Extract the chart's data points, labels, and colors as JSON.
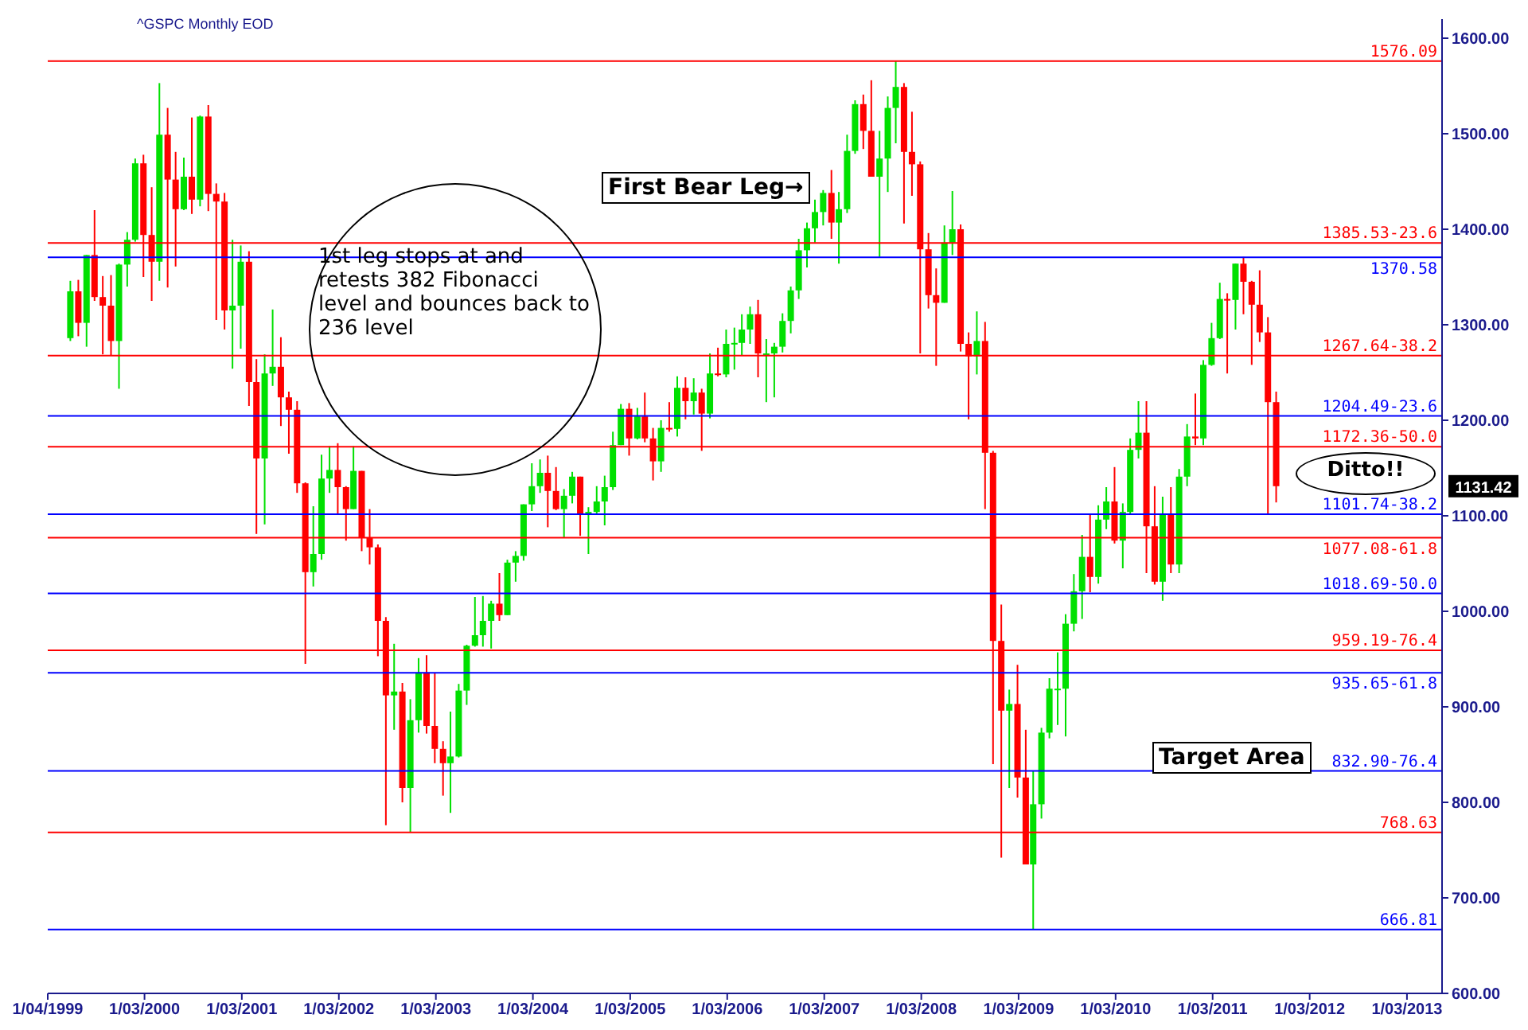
{
  "chart_data": {
    "type": "candlestick",
    "title": "^GSPC Monthly EOD",
    "x": [
      "1999-04",
      "1999-05",
      "1999-06",
      "1999-07",
      "1999-08",
      "1999-09",
      "1999-10",
      "1999-11",
      "1999-12",
      "2000-01",
      "2000-02",
      "2000-03",
      "2000-04",
      "2000-05",
      "2000-06",
      "2000-07",
      "2000-08",
      "2000-09",
      "2000-10",
      "2000-11",
      "2000-12",
      "2001-01",
      "2001-02",
      "2001-03",
      "2001-04",
      "2001-05",
      "2001-06",
      "2001-07",
      "2001-08",
      "2001-09",
      "2001-10",
      "2001-11",
      "2001-12",
      "2002-01",
      "2002-02",
      "2002-03",
      "2002-04",
      "2002-05",
      "2002-06",
      "2002-07",
      "2002-08",
      "2002-09",
      "2002-10",
      "2002-11",
      "2002-12",
      "2003-01",
      "2003-02",
      "2003-03",
      "2003-04",
      "2003-05",
      "2003-06",
      "2003-07",
      "2003-08",
      "2003-09",
      "2003-10",
      "2003-11",
      "2003-12",
      "2004-01",
      "2004-02",
      "2004-03",
      "2004-04",
      "2004-05",
      "2004-06",
      "2004-07",
      "2004-08",
      "2004-09",
      "2004-10",
      "2004-11",
      "2004-12",
      "2005-01",
      "2005-02",
      "2005-03",
      "2005-04",
      "2005-05",
      "2005-06",
      "2005-07",
      "2005-08",
      "2005-09",
      "2005-10",
      "2005-11",
      "2005-12",
      "2006-01",
      "2006-02",
      "2006-03",
      "2006-04",
      "2006-05",
      "2006-06",
      "2006-07",
      "2006-08",
      "2006-09",
      "2006-10",
      "2006-11",
      "2006-12",
      "2007-01",
      "2007-02",
      "2007-03",
      "2007-04",
      "2007-05",
      "2007-06",
      "2007-07",
      "2007-08",
      "2007-09",
      "2007-10",
      "2007-11",
      "2007-12",
      "2008-01",
      "2008-02",
      "2008-03",
      "2008-04",
      "2008-05",
      "2008-06",
      "2008-07",
      "2008-08",
      "2008-09",
      "2008-10",
      "2008-11",
      "2008-12",
      "2009-01",
      "2009-02",
      "2009-03",
      "2009-04",
      "2009-05",
      "2009-06",
      "2009-07",
      "2009-08",
      "2009-09",
      "2009-10",
      "2009-11",
      "2009-12",
      "2010-01",
      "2010-02",
      "2010-03",
      "2010-04",
      "2010-05",
      "2010-06",
      "2010-07",
      "2010-08",
      "2010-09",
      "2010-10",
      "2010-11",
      "2010-12",
      "2011-01",
      "2011-02",
      "2011-03",
      "2011-04",
      "2011-05",
      "2011-06",
      "2011-07",
      "2011-08",
      "2011-09"
    ],
    "ohlc": [
      [
        1286,
        1346,
        1283,
        1335
      ],
      [
        1335,
        1347,
        1288,
        1302
      ],
      [
        1302,
        1373,
        1277,
        1373
      ],
      [
        1373,
        1420,
        1325,
        1329
      ],
      [
        1329,
        1351,
        1269,
        1320
      ],
      [
        1320,
        1352,
        1268,
        1283
      ],
      [
        1283,
        1364,
        1233,
        1363
      ],
      [
        1363,
        1397,
        1340,
        1389
      ],
      [
        1389,
        1474,
        1387,
        1469
      ],
      [
        1469,
        1478,
        1350,
        1394
      ],
      [
        1394,
        1444,
        1325,
        1366
      ],
      [
        1366,
        1553,
        1346,
        1499
      ],
      [
        1499,
        1527,
        1339,
        1452
      ],
      [
        1452,
        1481,
        1361,
        1421
      ],
      [
        1421,
        1475,
        1420,
        1455
      ],
      [
        1455,
        1517,
        1416,
        1431
      ],
      [
        1431,
        1519,
        1424,
        1518
      ],
      [
        1518,
        1530,
        1419,
        1437
      ],
      [
        1437,
        1448,
        1305,
        1429
      ],
      [
        1429,
        1438,
        1295,
        1315
      ],
      [
        1315,
        1389,
        1254,
        1320
      ],
      [
        1320,
        1383,
        1275,
        1366
      ],
      [
        1366,
        1377,
        1215,
        1240
      ],
      [
        1240,
        1264,
        1081,
        1160
      ],
      [
        1160,
        1269,
        1091,
        1249
      ],
      [
        1249,
        1316,
        1236,
        1256
      ],
      [
        1256,
        1287,
        1194,
        1224
      ],
      [
        1224,
        1230,
        1165,
        1211
      ],
      [
        1211,
        1220,
        1124,
        1134
      ],
      [
        1134,
        1135,
        945,
        1041
      ],
      [
        1041,
        1110,
        1026,
        1060
      ],
      [
        1060,
        1164,
        1054,
        1139
      ],
      [
        1139,
        1173,
        1124,
        1148
      ],
      [
        1148,
        1176,
        1101,
        1130
      ],
      [
        1130,
        1131,
        1074,
        1107
      ],
      [
        1107,
        1173,
        1107,
        1147
      ],
      [
        1147,
        1147,
        1063,
        1077
      ],
      [
        1077,
        1107,
        1049,
        1067
      ],
      [
        1067,
        1070,
        953,
        990
      ],
      [
        990,
        994,
        776,
        912
      ],
      [
        912,
        966,
        876,
        916
      ],
      [
        916,
        925,
        800,
        815
      ],
      [
        815,
        908,
        769,
        886
      ],
      [
        886,
        951,
        873,
        936
      ],
      [
        936,
        954,
        872,
        880
      ],
      [
        880,
        935,
        841,
        856
      ],
      [
        856,
        864,
        807,
        841
      ],
      [
        841,
        895,
        789,
        848
      ],
      [
        848,
        924,
        847,
        917
      ],
      [
        917,
        965,
        902,
        964
      ],
      [
        964,
        1015,
        963,
        975
      ],
      [
        975,
        1016,
        963,
        990
      ],
      [
        990,
        1011,
        961,
        1008
      ],
      [
        1008,
        1040,
        990,
        996
      ],
      [
        996,
        1054,
        996,
        1051
      ],
      [
        1051,
        1063,
        1031,
        1058
      ],
      [
        1058,
        1112,
        1053,
        1112
      ],
      [
        1112,
        1155,
        1105,
        1131
      ],
      [
        1131,
        1159,
        1124,
        1145
      ],
      [
        1145,
        1163,
        1088,
        1126
      ],
      [
        1126,
        1151,
        1106,
        1107
      ],
      [
        1107,
        1128,
        1077,
        1121
      ],
      [
        1121,
        1146,
        1113,
        1141
      ],
      [
        1141,
        1141,
        1079,
        1102
      ],
      [
        1102,
        1109,
        1060,
        1104
      ],
      [
        1104,
        1131,
        1102,
        1115
      ],
      [
        1115,
        1142,
        1090,
        1130
      ],
      [
        1130,
        1188,
        1127,
        1174
      ],
      [
        1174,
        1217,
        1174,
        1212
      ],
      [
        1212,
        1218,
        1163,
        1181
      ],
      [
        1181,
        1213,
        1180,
        1204
      ],
      [
        1204,
        1229,
        1177,
        1181
      ],
      [
        1181,
        1192,
        1137,
        1157
      ],
      [
        1157,
        1200,
        1146,
        1192
      ],
      [
        1192,
        1219,
        1188,
        1191
      ],
      [
        1191,
        1246,
        1183,
        1234
      ],
      [
        1234,
        1245,
        1201,
        1220
      ],
      [
        1220,
        1244,
        1206,
        1229
      ],
      [
        1229,
        1233,
        1168,
        1207
      ],
      [
        1207,
        1270,
        1202,
        1249
      ],
      [
        1249,
        1276,
        1246,
        1248
      ],
      [
        1248,
        1295,
        1245,
        1280
      ],
      [
        1280,
        1297,
        1253,
        1281
      ],
      [
        1281,
        1311,
        1268,
        1295
      ],
      [
        1295,
        1319,
        1280,
        1311
      ],
      [
        1311,
        1326,
        1245,
        1270
      ],
      [
        1270,
        1285,
        1219,
        1270
      ],
      [
        1270,
        1281,
        1224,
        1277
      ],
      [
        1277,
        1312,
        1271,
        1304
      ],
      [
        1304,
        1340,
        1291,
        1336
      ],
      [
        1336,
        1390,
        1327,
        1378
      ],
      [
        1378,
        1407,
        1360,
        1401
      ],
      [
        1401,
        1431,
        1386,
        1418
      ],
      [
        1418,
        1441,
        1404,
        1438
      ],
      [
        1438,
        1462,
        1390,
        1407
      ],
      [
        1407,
        1439,
        1364,
        1421
      ],
      [
        1421,
        1499,
        1417,
        1482
      ],
      [
        1482,
        1535,
        1479,
        1531
      ],
      [
        1531,
        1541,
        1484,
        1503
      ],
      [
        1503,
        1556,
        1455,
        1455
      ],
      [
        1455,
        1503,
        1371,
        1474
      ],
      [
        1474,
        1539,
        1439,
        1527
      ],
      [
        1527,
        1576,
        1490,
        1549
      ],
      [
        1549,
        1553,
        1406,
        1481
      ],
      [
        1481,
        1523,
        1435,
        1468
      ],
      [
        1468,
        1471,
        1270,
        1379
      ],
      [
        1379,
        1396,
        1317,
        1331
      ],
      [
        1331,
        1359,
        1257,
        1323
      ],
      [
        1323,
        1404,
        1323,
        1386
      ],
      [
        1386,
        1440,
        1373,
        1400
      ],
      [
        1400,
        1405,
        1272,
        1280
      ],
      [
        1280,
        1292,
        1201,
        1267
      ],
      [
        1267,
        1314,
        1248,
        1283
      ],
      [
        1283,
        1303,
        1107,
        1166
      ],
      [
        1166,
        1168,
        840,
        969
      ],
      [
        969,
        1007,
        742,
        896
      ],
      [
        896,
        918,
        815,
        903
      ],
      [
        903,
        944,
        805,
        826
      ],
      [
        826,
        876,
        735,
        735
      ],
      [
        735,
        833,
        667,
        798
      ],
      [
        798,
        878,
        783,
        873
      ],
      [
        873,
        930,
        867,
        919
      ],
      [
        919,
        957,
        881,
        919
      ],
      [
        919,
        997,
        869,
        987
      ],
      [
        987,
        1039,
        979,
        1021
      ],
      [
        1021,
        1080,
        992,
        1057
      ],
      [
        1057,
        1102,
        1020,
        1036
      ],
      [
        1036,
        1111,
        1029,
        1096
      ],
      [
        1096,
        1130,
        1086,
        1115
      ],
      [
        1115,
        1151,
        1071,
        1074
      ],
      [
        1074,
        1113,
        1045,
        1104
      ],
      [
        1104,
        1181,
        1101,
        1169
      ],
      [
        1169,
        1220,
        1160,
        1187
      ],
      [
        1187,
        1220,
        1040,
        1089
      ],
      [
        1089,
        1131,
        1028,
        1031
      ],
      [
        1031,
        1120,
        1011,
        1102
      ],
      [
        1102,
        1130,
        1040,
        1049
      ],
      [
        1049,
        1149,
        1040,
        1141
      ],
      [
        1141,
        1196,
        1131,
        1183
      ],
      [
        1183,
        1228,
        1174,
        1181
      ],
      [
        1181,
        1263,
        1174,
        1258
      ],
      [
        1258,
        1302,
        1257,
        1286
      ],
      [
        1286,
        1344,
        1285,
        1327
      ],
      [
        1327,
        1333,
        1249,
        1326
      ],
      [
        1326,
        1364,
        1295,
        1364
      ],
      [
        1364,
        1371,
        1311,
        1345
      ],
      [
        1345,
        1346,
        1258,
        1321
      ],
      [
        1321,
        1357,
        1282,
        1292
      ],
      [
        1292,
        1308,
        1101,
        1219
      ],
      [
        1219,
        1230,
        1114,
        1131
      ]
    ],
    "xlim": [
      "1999-01-04",
      "2013-05-15"
    ],
    "xticks": [
      {
        "value": "1999-01-04",
        "label": "1/04/1999"
      },
      {
        "value": "2000-01-03",
        "label": "1/03/2000"
      },
      {
        "value": "2001-01-03",
        "label": "1/03/2001"
      },
      {
        "value": "2002-01-03",
        "label": "1/03/2002"
      },
      {
        "value": "2003-01-03",
        "label": "1/03/2003"
      },
      {
        "value": "2004-01-03",
        "label": "1/03/2004"
      },
      {
        "value": "2005-01-03",
        "label": "1/03/2005"
      },
      {
        "value": "2006-01-03",
        "label": "1/03/2006"
      },
      {
        "value": "2007-01-03",
        "label": "1/03/2007"
      },
      {
        "value": "2008-01-03",
        "label": "1/03/2008"
      },
      {
        "value": "2009-01-03",
        "label": "1/03/2009"
      },
      {
        "value": "2010-01-03",
        "label": "1/03/2010"
      },
      {
        "value": "2011-01-03",
        "label": "1/03/2011"
      },
      {
        "value": "2012-01-03",
        "label": "1/03/2012"
      },
      {
        "value": "2013-01-03",
        "label": "1/03/2013"
      }
    ],
    "ylim": [
      600,
      1620
    ],
    "yticks": [
      {
        "value": 600,
        "label": "600.00"
      },
      {
        "value": 700,
        "label": "700.00"
      },
      {
        "value": 800,
        "label": "800.00"
      },
      {
        "value": 900,
        "label": "900.00"
      },
      {
        "value": 1000,
        "label": "1000.00"
      },
      {
        "value": 1100,
        "label": "1100.00"
      },
      {
        "value": 1200,
        "label": "1200.00"
      },
      {
        "value": 1300,
        "label": "1300.00"
      },
      {
        "value": 1400,
        "label": "1400.00"
      },
      {
        "value": 1500,
        "label": "1500.00"
      },
      {
        "value": 1600,
        "label": "1600.00"
      }
    ],
    "ref_lines": [
      {
        "axis": "y",
        "value": 1576.09,
        "label": "1576.09",
        "color": "#ff0000"
      },
      {
        "axis": "y",
        "value": 1385.53,
        "label": "1385.53-23.6",
        "color": "#ff0000"
      },
      {
        "axis": "y",
        "value": 1267.64,
        "label": "1267.64-38.2",
        "color": "#ff0000"
      },
      {
        "axis": "y",
        "value": 1172.36,
        "label": "1172.36-50.0",
        "color": "#ff0000"
      },
      {
        "axis": "y",
        "value": 1077.08,
        "label": "1077.08-61.8",
        "color": "#ff0000"
      },
      {
        "axis": "y",
        "value": 959.19,
        "label": "959.19-76.4",
        "color": "#ff0000"
      },
      {
        "axis": "y",
        "value": 768.63,
        "label": "768.63",
        "color": "#ff0000"
      },
      {
        "axis": "y",
        "value": 1370.58,
        "label": "1370.58",
        "color": "#0000ff"
      },
      {
        "axis": "y",
        "value": 1204.49,
        "label": "1204.49-23.6",
        "color": "#0000ff"
      },
      {
        "axis": "y",
        "value": 1101.74,
        "label": "1101.74-38.2",
        "color": "#0000ff"
      },
      {
        "axis": "y",
        "value": 1018.69,
        "label": "1018.69-50.0",
        "color": "#0000ff"
      },
      {
        "axis": "y",
        "value": 935.65,
        "label": "935.65-61.8",
        "color": "#0000ff"
      },
      {
        "axis": "y",
        "value": 832.9,
        "label": "832.90-76.4",
        "color": "#0000ff"
      },
      {
        "axis": "y",
        "value": 666.81,
        "label": "666.81",
        "color": "#0000ff"
      }
    ],
    "annotations": [
      "1st leg stops at and retests 382 Fibonacci level and bounces back to 236 level",
      "First Bear Leg→",
      "Ditto!!",
      "Target Area",
      "1131.42"
    ]
  }
}
